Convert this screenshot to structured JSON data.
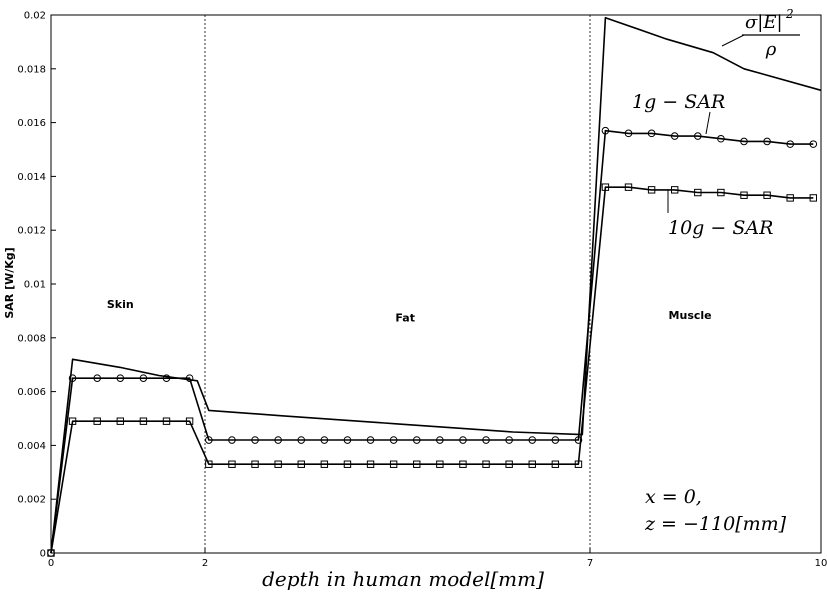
{
  "chart_data": {
    "type": "line",
    "title": "",
    "xlabel": "depth in human model[mm]",
    "ylabel": "SAR [W/Kg]",
    "xlim": [
      0,
      10
    ],
    "ylim": [
      0,
      0.02
    ],
    "xticks": [
      0,
      2,
      7,
      10
    ],
    "xtick_labels": [
      "0",
      "2",
      "7",
      "10"
    ],
    "yticks": [
      0,
      0.002,
      0.004,
      0.006,
      0.008,
      0.01,
      0.012,
      0.014,
      0.016,
      0.018,
      0.02
    ],
    "ytick_labels": [
      "0",
      "0.002",
      "0.004",
      "0.006",
      "0.008",
      "0.01",
      "0.012",
      "0.014",
      "0.016",
      "0.018",
      "0.02"
    ],
    "grid": false,
    "boundaries": [
      2,
      7
    ],
    "regions": [
      {
        "label": "Skin",
        "x": 0.9,
        "y": 0.0091
      },
      {
        "label": "Fat",
        "x": 4.6,
        "y": 0.0086
      },
      {
        "label": "Muscle",
        "x": 8.3,
        "y": 0.0087
      }
    ],
    "series": [
      {
        "name": "σ|E|²/ρ",
        "marker": "none",
        "x": [
          0,
          0.28,
          0.9,
          1.4,
          1.9,
          2.05,
          3.0,
          4.5,
          6.0,
          6.9,
          7.2,
          8.0,
          8.6,
          9.0,
          10.0
        ],
        "y": [
          0,
          0.0072,
          0.0069,
          0.0066,
          0.0064,
          0.0053,
          0.0051,
          0.0048,
          0.0045,
          0.0044,
          0.0199,
          0.0191,
          0.0186,
          0.018,
          0.0172
        ]
      },
      {
        "name": "1g − SAR",
        "marker": "circle",
        "x": [
          0,
          0.28,
          0.6,
          0.9,
          1.2,
          1.5,
          1.8,
          2.05,
          2.35,
          2.65,
          2.95,
          3.25,
          3.55,
          3.85,
          4.15,
          4.45,
          4.75,
          5.05,
          5.35,
          5.65,
          5.95,
          6.25,
          6.55,
          6.85,
          7.2,
          7.5,
          7.8,
          8.1,
          8.4,
          8.7,
          9.0,
          9.3,
          9.6,
          9.9
        ],
        "y": [
          0,
          0.0065,
          0.0065,
          0.0065,
          0.0065,
          0.0065,
          0.0065,
          0.0042,
          0.0042,
          0.0042,
          0.0042,
          0.0042,
          0.0042,
          0.0042,
          0.0042,
          0.0042,
          0.0042,
          0.0042,
          0.0042,
          0.0042,
          0.0042,
          0.0042,
          0.0042,
          0.0042,
          0.0157,
          0.0156,
          0.0156,
          0.0155,
          0.0155,
          0.0154,
          0.0153,
          0.0153,
          0.0152,
          0.0152
        ]
      },
      {
        "name": "10g − SAR",
        "marker": "square",
        "x": [
          0,
          0.28,
          0.6,
          0.9,
          1.2,
          1.5,
          1.8,
          2.05,
          2.35,
          2.65,
          2.95,
          3.25,
          3.55,
          3.85,
          4.15,
          4.45,
          4.75,
          5.05,
          5.35,
          5.65,
          5.95,
          6.25,
          6.55,
          6.85,
          7.2,
          7.5,
          7.8,
          8.1,
          8.4,
          8.7,
          9.0,
          9.3,
          9.6,
          9.9
        ],
        "y": [
          0,
          0.0049,
          0.0049,
          0.0049,
          0.0049,
          0.0049,
          0.0049,
          0.0033,
          0.0033,
          0.0033,
          0.0033,
          0.0033,
          0.0033,
          0.0033,
          0.0033,
          0.0033,
          0.0033,
          0.0033,
          0.0033,
          0.0033,
          0.0033,
          0.0033,
          0.0033,
          0.0033,
          0.0136,
          0.0136,
          0.0135,
          0.0135,
          0.0134,
          0.0134,
          0.0133,
          0.0133,
          0.0132,
          0.0132
        ]
      }
    ],
    "annotations": {
      "sar_formula": {
        "numerator": "σ|E|",
        "exponent": "2",
        "denominator": "ρ"
      },
      "one_g_label": "1g − SAR",
      "ten_g_label": "10g − SAR",
      "position_x": "x = 0,",
      "position_z": "z = −110[mm]"
    }
  }
}
